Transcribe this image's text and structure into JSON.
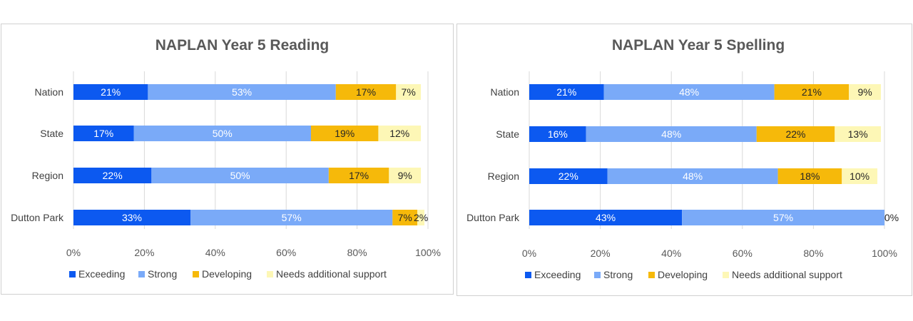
{
  "chart_data": [
    {
      "type": "bar",
      "orientation": "horizontal",
      "stacked": true,
      "title": "NAPLAN  Year 5 Reading",
      "categories": [
        "Nation",
        "State",
        "Region",
        "Dutton Park"
      ],
      "series": [
        {
          "name": "Exceeding",
          "color": "#0c59f0",
          "values": [
            21,
            17,
            22,
            33
          ],
          "labels": [
            "21%",
            "17%",
            "22%",
            "33%"
          ]
        },
        {
          "name": "Strong",
          "color": "#7aaaf8",
          "values": [
            53,
            50,
            50,
            57
          ],
          "labels": [
            "53%",
            "50%",
            "50%",
            "57%"
          ]
        },
        {
          "name": "Developing",
          "color": "#f6b90a",
          "values": [
            17,
            19,
            17,
            7
          ],
          "labels": [
            "17%",
            "19%",
            "17%",
            "7%"
          ]
        },
        {
          "name": "Needs additional support",
          "color": "#fdf7b6",
          "values": [
            7,
            12,
            9,
            2
          ],
          "labels": [
            "7%",
            "12%",
            "9%",
            "2%"
          ]
        }
      ],
      "xticks": [
        "0%",
        "20%",
        "40%",
        "60%",
        "80%",
        "100%"
      ],
      "xlim": [
        0,
        100
      ],
      "grid": true,
      "legend": "bottom"
    },
    {
      "type": "bar",
      "orientation": "horizontal",
      "stacked": true,
      "title": "NAPLAN  Year 5 Spelling",
      "categories": [
        "Nation",
        "State",
        "Region",
        "Dutton Park"
      ],
      "series": [
        {
          "name": "Exceeding",
          "color": "#0c59f0",
          "values": [
            21,
            16,
            22,
            43
          ],
          "labels": [
            "21%",
            "16%",
            "22%",
            "43%"
          ]
        },
        {
          "name": "Strong",
          "color": "#7aaaf8",
          "values": [
            48,
            48,
            48,
            57
          ],
          "labels": [
            "48%",
            "48%",
            "48%",
            "57%"
          ]
        },
        {
          "name": "Developing",
          "color": "#f6b90a",
          "values": [
            21,
            22,
            18,
            0
          ],
          "labels": [
            "21%",
            "22%",
            "18%",
            ""
          ]
        },
        {
          "name": "Needs additional support",
          "color": "#fdf7b6",
          "values": [
            9,
            13,
            10,
            0
          ],
          "labels": [
            "9%",
            "13%",
            "10%",
            "0%"
          ]
        }
      ],
      "xticks": [
        "0%",
        "20%",
        "40%",
        "60%",
        "80%",
        "100%"
      ],
      "xlim": [
        0,
        100
      ],
      "grid": true,
      "legend": "bottom"
    }
  ]
}
